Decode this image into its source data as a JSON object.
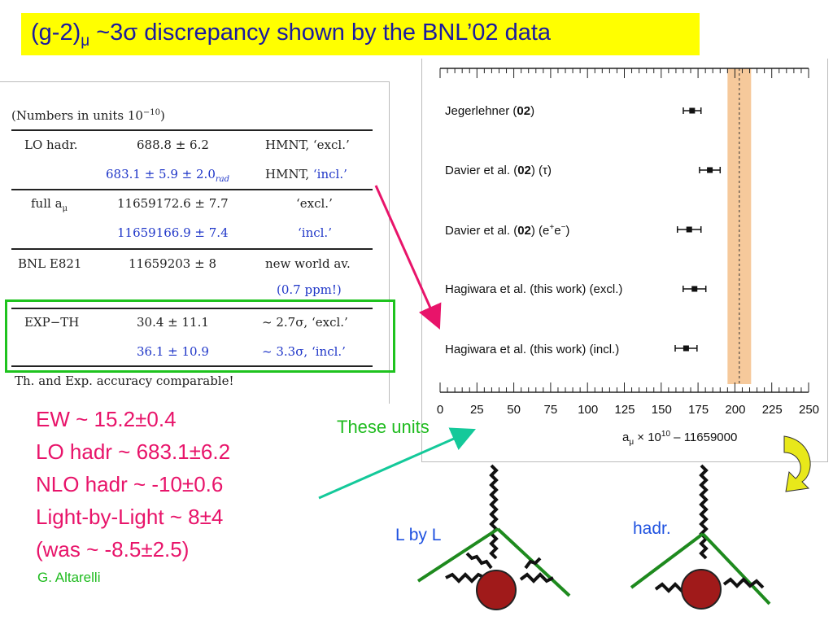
{
  "title": {
    "main": "(g-2)",
    "sub": "μ",
    "rest": " ~3σ discrepancy shown by the BNL’02 data"
  },
  "table": {
    "caption": "(Numbers in units 10",
    "caption_exp": "−10",
    "caption_end": ")",
    "rows": [
      {
        "label": "LO hadr.",
        "value": "688.8 ± 6.2",
        "note": "HMNT, ‘excl.’"
      },
      {
        "label": "",
        "value": "683.1 ± 5.9 ± 2.0",
        "value_sub": "rad",
        "note_a": "HMNT, ",
        "note_b": "‘incl.’"
      },
      {
        "label": "full a",
        "label_sub": "μ",
        "value": "11659172.6 ± 7.7",
        "note": "‘excl.’"
      },
      {
        "label": "",
        "value": "11659166.9 ± 7.4",
        "note": "‘incl.’"
      },
      {
        "label": "BNL E821",
        "value": "11659203 ± 8",
        "note": "new world av."
      },
      {
        "label": "",
        "value": "",
        "note": "(0.7 ppm!)"
      },
      {
        "label": "EXP−TH",
        "value": "30.4 ± 11.1",
        "note": "~ 2.7σ, ‘excl.’"
      },
      {
        "label": "",
        "value": "36.1 ± 10.9",
        "note": "~ 3.3σ, ‘incl.’"
      }
    ],
    "footer": "Th. and Exp. accuracy comparable!"
  },
  "annotations": {
    "lines": [
      "EW ~  15.2±0.4",
      "LO hadr ~ 683.1±6.2",
      "NLO hadr ~ -10±0.6",
      "Light-by-Light ~ 8±4",
      "(was ~ -8.5±2.5)"
    ],
    "credit": "G. Altarelli",
    "these_units": "These units",
    "lbyl": "L by L",
    "hadr": "hadr."
  },
  "chart_data": {
    "type": "scatter",
    "orientation": "horizontal",
    "categories": [
      "Jegerlehner (02)",
      "Davier et al. (02) (τ)",
      "Davier et al. (02) (e⁺e⁻)",
      "Hagiwara et al. (this work) (excl.)",
      "Hagiwara et al. (this work) (incl.)"
    ],
    "values": [
      171,
      183,
      169,
      172.6,
      166.9
    ],
    "errors": [
      6,
      7,
      8,
      7.7,
      7.4
    ],
    "band": {
      "center": 203,
      "half_width": 8
    },
    "xlim": [
      0,
      250
    ],
    "xticks": [
      0,
      25,
      50,
      75,
      100,
      125,
      150,
      175,
      200,
      225,
      250
    ],
    "xlabel": "a",
    "xlabel_sub": "μ",
    "xlabel_rest": " × 10",
    "xlabel_sup": "10",
    "xlabel_end": " – 11659000"
  }
}
